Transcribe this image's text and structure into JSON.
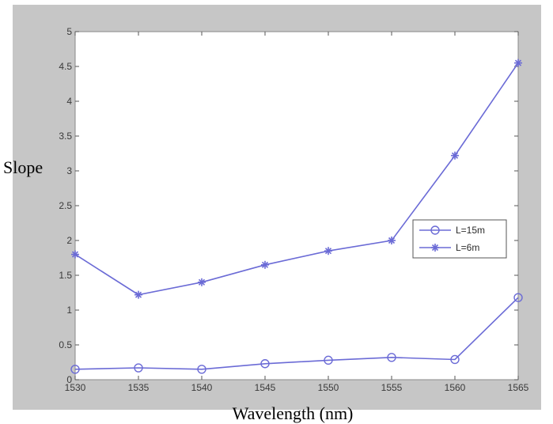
{
  "chart_data": {
    "type": "line",
    "title": "",
    "xlabel": "Wavelength (nm)",
    "ylabel": "Slope",
    "x": [
      1530,
      1535,
      1540,
      1545,
      1550,
      1555,
      1560,
      1565
    ],
    "x_tick_labels": [
      "1530",
      "1535",
      "1540",
      "1545",
      "1550",
      "1555",
      "1560",
      "1565"
    ],
    "y_tick_labels": [
      "0",
      "0.5",
      "1",
      "1.5",
      "2",
      "2.5",
      "3",
      "3.5",
      "4",
      "4.5",
      "5"
    ],
    "y_ticks": [
      0,
      0.5,
      1,
      1.5,
      2,
      2.5,
      3,
      3.5,
      4,
      4.5,
      5
    ],
    "xlim": [
      1530,
      1565
    ],
    "ylim": [
      0,
      5
    ],
    "grid": false,
    "legend_position": "right",
    "series": [
      {
        "name": "L=15m",
        "marker": "circle",
        "color": "#6b6bd6",
        "values": [
          0.15,
          0.17,
          0.15,
          0.23,
          0.28,
          0.32,
          0.29,
          1.18
        ]
      },
      {
        "name": "L=6m",
        "marker": "star",
        "color": "#6b6bd6",
        "values": [
          1.8,
          1.22,
          1.4,
          1.65,
          1.85,
          2.0,
          3.22,
          4.55
        ]
      }
    ]
  },
  "colors": {
    "background": "#ffffff",
    "frame_gray": "#c6c6c6",
    "axes_face": "#ffffff",
    "axis_line": "#555555"
  }
}
